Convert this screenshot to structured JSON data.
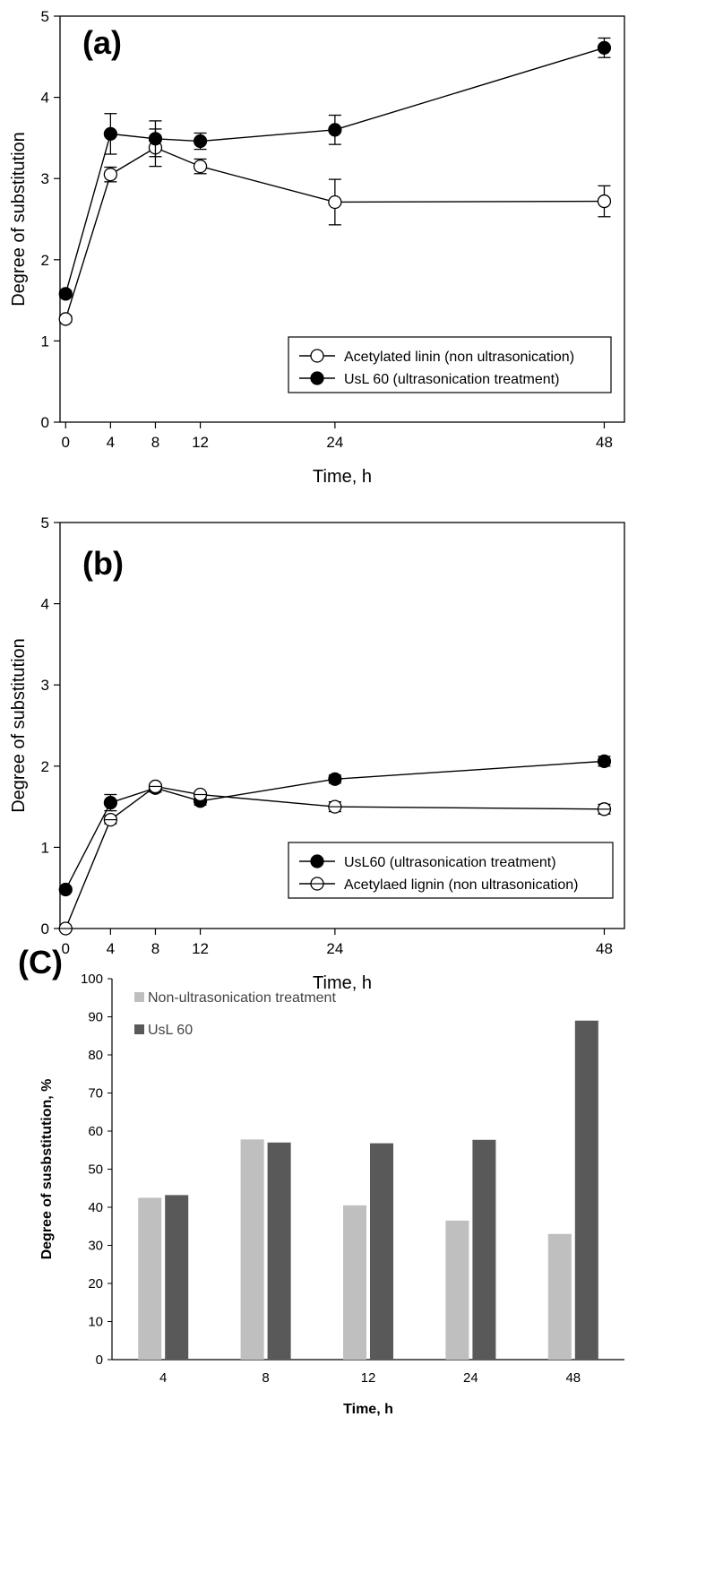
{
  "chart_data": [
    {
      "type": "line",
      "panel_label": "(a)",
      "xlabel": "Time, h",
      "ylabel": "Degree of substitution",
      "xlim": [
        -0.5,
        49.8
      ],
      "ylim": [
        0,
        5
      ],
      "x_ticks": [
        0,
        4,
        8,
        12,
        24,
        48
      ],
      "y_ticks": [
        0,
        1,
        2,
        3,
        4,
        5
      ],
      "legend_position": "lower-right",
      "x": [
        0,
        4,
        8,
        12,
        24,
        48
      ],
      "series": [
        {
          "name": "Acetylated linin (non ultrasonication)",
          "marker": "open-circle",
          "values": [
            1.27,
            3.05,
            3.38,
            3.15,
            2.71,
            2.72
          ],
          "errors": [
            0.04,
            0.09,
            0.23,
            0.09,
            0.28,
            0.19
          ]
        },
        {
          "name": "UsL 60 (ultrasonication treatment)",
          "marker": "filled-circle",
          "values": [
            1.58,
            3.55,
            3.49,
            3.46,
            3.6,
            4.61
          ],
          "errors": [
            0.04,
            0.25,
            0.22,
            0.1,
            0.18,
            0.12
          ]
        }
      ]
    },
    {
      "type": "line",
      "panel_label": "(b)",
      "xlabel": "Time, h",
      "ylabel": "Degree of substitution",
      "xlim": [
        -0.5,
        49.8
      ],
      "ylim": [
        0,
        5
      ],
      "x_ticks": [
        0,
        4,
        8,
        12,
        24,
        48
      ],
      "y_ticks": [
        0,
        1,
        2,
        3,
        4,
        5
      ],
      "legend_position": "lower-right",
      "x": [
        0,
        4,
        8,
        12,
        24,
        48
      ],
      "series": [
        {
          "name": "UsL60 (ultrasonication treatment)",
          "marker": "filled-circle",
          "values": [
            0.48,
            1.55,
            1.73,
            1.57,
            1.84,
            2.06
          ],
          "errors": [
            0.02,
            0.1,
            0.05,
            0.05,
            0.05,
            0.06
          ]
        },
        {
          "name": "Acetylaed lignin (non ultrasonication)",
          "marker": "open-circle-crossed",
          "values": [
            0.0,
            1.34,
            1.75,
            1.65,
            1.5,
            1.47
          ],
          "errors": [
            0.01,
            0.05,
            0.03,
            0.03,
            0.06,
            0.06
          ]
        }
      ]
    },
    {
      "type": "bar",
      "panel_label": "(C)",
      "xlabel": "Time, h",
      "ylabel": "Degree of susbstitution, %",
      "ylim": [
        0,
        100
      ],
      "y_ticks": [
        0,
        10,
        20,
        30,
        40,
        50,
        60,
        70,
        80,
        90,
        100
      ],
      "legend_position": "top-left",
      "categories": [
        "4",
        "8",
        "12",
        "24",
        "48"
      ],
      "series": [
        {
          "name": "Non-ultrasonication treatment",
          "color": "#bfbfbf",
          "values": [
            42.5,
            57.8,
            40.5,
            36.5,
            33.0
          ]
        },
        {
          "name": "UsL 60",
          "color": "#595959",
          "values": [
            43.2,
            57.0,
            56.8,
            57.7,
            89.0
          ]
        }
      ]
    }
  ]
}
